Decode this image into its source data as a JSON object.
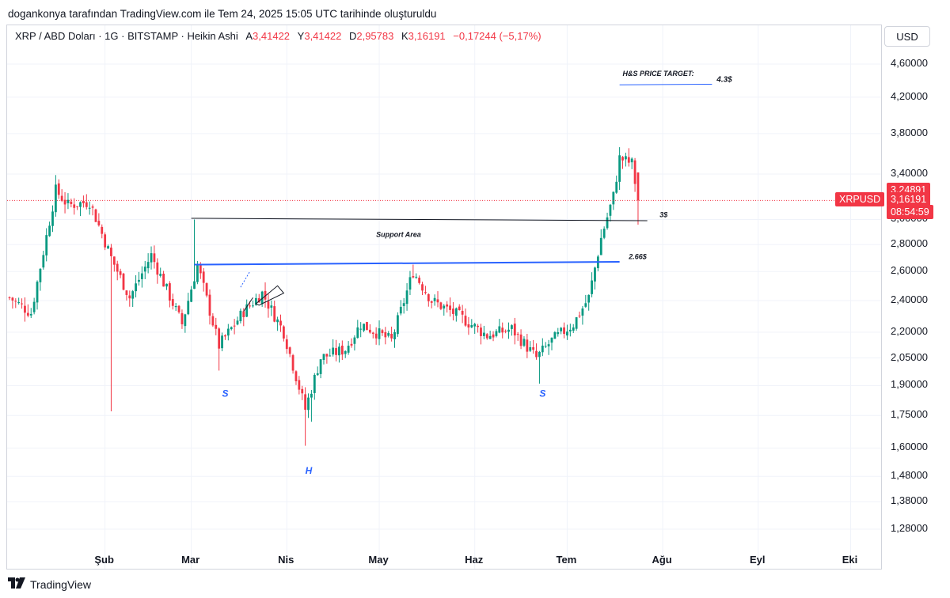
{
  "caption": "dogankonya tarafından TradingView.com ile Tem 24, 2025 15:05 UTC tarihinde oluşturuldu",
  "legend": {
    "symbol": "XRP / ABD Doları · 1G · BITSTAMP · Heikin Ashi",
    "a_label": "A",
    "a_value": "3,41422",
    "y_label": "Y",
    "y_value": "3,41422",
    "d_label": "D",
    "d_value": "2,95783",
    "k_label": "K",
    "k_value": "3,16191",
    "change": "−0,17244 (−5,17%)"
  },
  "currency": "USD",
  "price_labels": {
    "upper": "3,24891",
    "ticker": "XRPUSD",
    "last": "3,16191",
    "countdown": "08:54:59"
  },
  "footer": {
    "brand": "TradingView",
    "icon": "tradingview-logo-icon"
  },
  "colors": {
    "up": "#089981",
    "down": "#f23645",
    "blue_line": "#2962ff",
    "annotation_blue": "#2962ff"
  },
  "chart_data": {
    "type": "candlestick",
    "style": "Heikin Ashi",
    "scale": "log",
    "y_ticks": [
      4.6,
      4.2,
      3.8,
      3.4,
      3.0,
      2.8,
      2.6,
      2.4,
      2.2,
      2.05,
      1.9,
      1.75,
      1.6,
      1.48,
      1.38,
      1.28
    ],
    "y_tick_labels": [
      "4,60000",
      "4,20000",
      "3,80000",
      "3,40000",
      "3,00000",
      "2,80000",
      "2,60000",
      "2,40000",
      "2,20000",
      "2,05000",
      "1,90000",
      "1,75000",
      "1,60000",
      "1,48000",
      "1,38000",
      "1,28000"
    ],
    "x_ticks": [
      {
        "label": "Şub",
        "date": "2025-02-01"
      },
      {
        "label": "Mar",
        "date": "2025-03-01"
      },
      {
        "label": "Nis",
        "date": "2025-04-01"
      },
      {
        "label": "May",
        "date": "2025-05-01"
      },
      {
        "label": "Haz",
        "date": "2025-06-01"
      },
      {
        "label": "Tem",
        "date": "2025-07-01"
      },
      {
        "label": "Ağu",
        "date": "2025-08-01"
      },
      {
        "label": "Eyl",
        "date": "2025-09-01"
      },
      {
        "label": "Eki",
        "date": "2025-10-01"
      }
    ],
    "start_date": "2025-01-01",
    "key_points": [
      {
        "date": "2025-01-01",
        "close": 2.42
      },
      {
        "date": "2025-01-08",
        "close": 2.32
      },
      {
        "date": "2025-01-16",
        "close": 3.25
      },
      {
        "date": "2025-01-20",
        "close": 3.12
      },
      {
        "date": "2025-01-27",
        "close": 3.15
      },
      {
        "date": "2025-02-03",
        "close": 2.7
      },
      {
        "date": "2025-02-09",
        "close": 2.42
      },
      {
        "date": "2025-02-16",
        "close": 2.72
      },
      {
        "date": "2025-02-26",
        "close": 2.25
      },
      {
        "date": "2025-03-03",
        "close": 2.65
      },
      {
        "date": "2025-03-10",
        "close": 2.12
      },
      {
        "date": "2025-03-18",
        "close": 2.33
      },
      {
        "date": "2025-03-24",
        "close": 2.45
      },
      {
        "date": "2025-03-31",
        "close": 2.2
      },
      {
        "date": "2025-04-07",
        "close": 1.78
      },
      {
        "date": "2025-04-12",
        "close": 2.05
      },
      {
        "date": "2025-04-20",
        "close": 2.1
      },
      {
        "date": "2025-04-25",
        "close": 2.25
      },
      {
        "date": "2025-05-05",
        "close": 2.15
      },
      {
        "date": "2025-05-12",
        "close": 2.6
      },
      {
        "date": "2025-05-18",
        "close": 2.4
      },
      {
        "date": "2025-05-27",
        "close": 2.3
      },
      {
        "date": "2025-06-05",
        "close": 2.18
      },
      {
        "date": "2025-06-13",
        "close": 2.22
      },
      {
        "date": "2025-06-21",
        "close": 2.05
      },
      {
        "date": "2025-06-26",
        "close": 2.15
      },
      {
        "date": "2025-07-03",
        "close": 2.25
      },
      {
        "date": "2025-07-08",
        "close": 2.42
      },
      {
        "date": "2025-07-12",
        "close": 2.85
      },
      {
        "date": "2025-07-16",
        "close": 3.2
      },
      {
        "date": "2025-07-18",
        "close": 3.55
      },
      {
        "date": "2025-07-22",
        "close": 3.5
      },
      {
        "date": "2025-07-24",
        "close": 3.16
      }
    ],
    "candles_scale_note": "Heikin Ashi daily candles; last candle O 3.41422 H 3.41422 L 2.95783 C 3.16191",
    "last_candle": {
      "date": "2025-07-24",
      "open": 3.41422,
      "high": 3.41422,
      "low": 2.95783,
      "close": 3.16191
    },
    "annotations": [
      {
        "type": "text",
        "text": "H&S PRICE TARGET:"
      },
      {
        "type": "level",
        "text": "4.3$",
        "value": 4.3
      },
      {
        "type": "level",
        "text": "3$",
        "value": 3.0
      },
      {
        "type": "text",
        "text": "Support Area"
      },
      {
        "type": "level",
        "text": "2.66$",
        "value": 2.66
      },
      {
        "type": "text",
        "text": "S",
        "date": "2025-03-11",
        "value": 1.9
      },
      {
        "type": "text",
        "text": "H",
        "date": "2025-04-07",
        "value": 1.55
      },
      {
        "type": "text",
        "text": "S",
        "date": "2025-06-22",
        "value": 1.9
      }
    ]
  }
}
